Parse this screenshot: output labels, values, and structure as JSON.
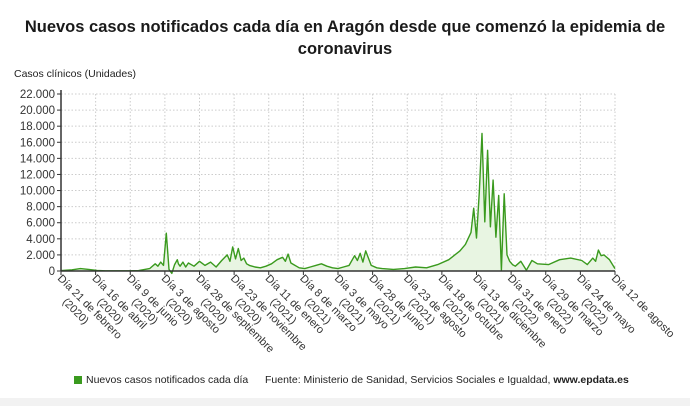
{
  "title": "Nuevos casos notificados cada día en Aragón desde que comenzó la epidemia de coronavirus",
  "title_line1": "Nuevos casos notificados cada día en Aragón desde que comenzó la epidemia de",
  "title_line2": "coronavirus",
  "y_axis_title": "Casos clínicos (Unidades)",
  "legend": {
    "label": "Nuevos casos notificados cada día",
    "color": "#3a9a1e"
  },
  "source": {
    "prefix": "Fuente: Ministerio de Sanidad, Servicios Sociales e Igualdad, ",
    "site": "www.epdata.es"
  },
  "colors": {
    "line": "#3a9a1e",
    "fill": "#e8f5e2",
    "grid": "#cccccc",
    "axis": "#333333"
  },
  "chart_data": {
    "type": "area",
    "title": "Nuevos casos notificados cada día en Aragón desde que comenzó la epidemia de coronavirus",
    "xlabel": "",
    "ylabel": "Casos clínicos (Unidades)",
    "ylim": [
      0,
      22000
    ],
    "y_ticks": [
      "0",
      "2.000",
      "4.000",
      "6.000",
      "8.000",
      "10.000",
      "12.000",
      "14.000",
      "16.000",
      "18.000",
      "20.000",
      "22.000"
    ],
    "grid": true,
    "legend_position": "bottom",
    "x_tick_labels": [
      [
        "Día 21 de febrero",
        "(2020)"
      ],
      [
        "Día 16 de abril",
        "(2020)"
      ],
      [
        "Día 9 de junio",
        "(2020)"
      ],
      [
        "Día 3 de agosto",
        "(2020)"
      ],
      [
        "Día 28 de septiembre",
        "(2020)"
      ],
      [
        "Día 23 de noviembre",
        "(2020)"
      ],
      [
        "Día 11 de enero",
        "(2021)"
      ],
      [
        "Día 8 de marzo",
        "(2021)"
      ],
      [
        "Día 3 de mayo",
        "(2021)"
      ],
      [
        "Día 28 de junio",
        "(2021)"
      ],
      [
        "Día 23 de agosto",
        "(2021)"
      ],
      [
        "Día 18 de octubre",
        "(2021)"
      ],
      [
        "Día 13 de diciembre",
        "(2021)"
      ],
      [
        "Día 31 de enero",
        "(2022)"
      ],
      [
        "Día 29 de marzo",
        "(2022)"
      ],
      [
        "Día 24 de mayo",
        "(2022)"
      ],
      [
        "Día 12 de agosto",
        ""
      ]
    ],
    "series": [
      {
        "name": "Nuevos casos notificados cada día",
        "x_frac": [
          0,
          0.02,
          0.035,
          0.05,
          0.065,
          0.08,
          0.1,
          0.12,
          0.14,
          0.16,
          0.17,
          0.175,
          0.18,
          0.185,
          0.19,
          0.195,
          0.2,
          0.205,
          0.21,
          0.212,
          0.215,
          0.22,
          0.225,
          0.23,
          0.24,
          0.25,
          0.26,
          0.27,
          0.28,
          0.29,
          0.3,
          0.305,
          0.31,
          0.315,
          0.32,
          0.325,
          0.33,
          0.335,
          0.34,
          0.35,
          0.36,
          0.37,
          0.38,
          0.39,
          0.4,
          0.405,
          0.41,
          0.415,
          0.42,
          0.43,
          0.44,
          0.45,
          0.46,
          0.47,
          0.48,
          0.49,
          0.5,
          0.51,
          0.52,
          0.53,
          0.535,
          0.54,
          0.545,
          0.55,
          0.56,
          0.57,
          0.58,
          0.6,
          0.62,
          0.64,
          0.66,
          0.68,
          0.7,
          0.72,
          0.73,
          0.74,
          0.745,
          0.75,
          0.755,
          0.76,
          0.765,
          0.77,
          0.775,
          0.78,
          0.785,
          0.79,
          0.795,
          0.8,
          0.805,
          0.81,
          0.815,
          0.82,
          0.83,
          0.84,
          0.85,
          0.86,
          0.88,
          0.9,
          0.92,
          0.94,
          0.95,
          0.96,
          0.965,
          0.97,
          0.975,
          0.98,
          0.99,
          1.0
        ],
        "values": [
          50,
          150,
          300,
          200,
          80,
          30,
          20,
          30,
          50,
          300,
          900,
          600,
          1100,
          700,
          4700,
          200,
          -300,
          800,
          1400,
          900,
          600,
          1100,
          500,
          1000,
          600,
          1200,
          700,
          1100,
          500,
          1300,
          2000,
          1200,
          3000,
          1500,
          2800,
          1300,
          1600,
          900,
          700,
          500,
          400,
          600,
          900,
          1400,
          1700,
          1200,
          2100,
          1000,
          800,
          400,
          300,
          500,
          700,
          900,
          600,
          400,
          300,
          500,
          700,
          1900,
          1300,
          2200,
          1100,
          2500,
          700,
          400,
          300,
          200,
          300,
          500,
          400,
          800,
          1400,
          2500,
          3300,
          4800,
          7800,
          4100,
          9800,
          17100,
          6100,
          15000,
          5500,
          11300,
          4200,
          9400,
          100,
          9600,
          2000,
          1200,
          800,
          600,
          1200,
          100,
          1300,
          900,
          800,
          1400,
          1600,
          1300,
          800,
          1600,
          1200,
          2600,
          1900,
          2000,
          1400,
          300
        ]
      }
    ]
  }
}
